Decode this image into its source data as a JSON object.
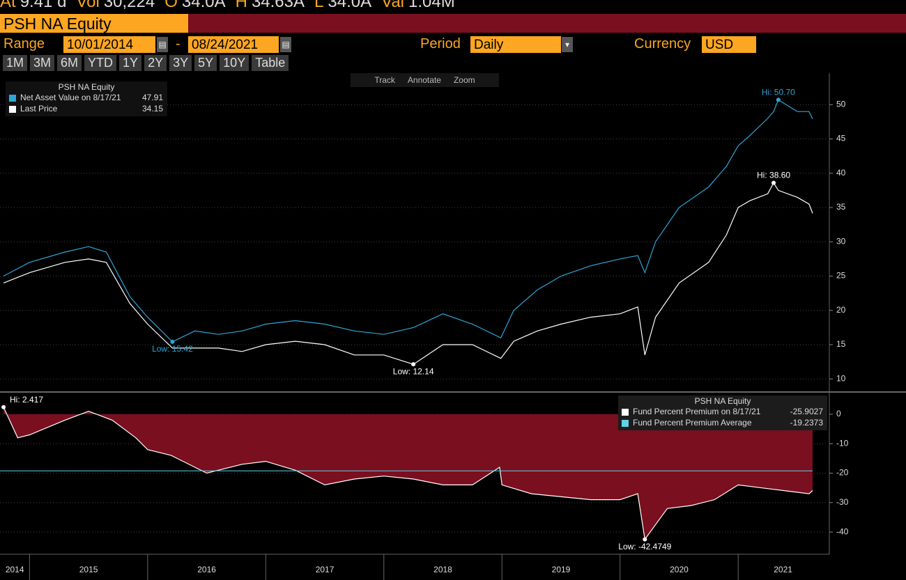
{
  "header": {
    "top_line": [
      "At",
      "9.41 d",
      "Vol",
      "30,224",
      "O",
      "34.0A",
      "H",
      "34.63A",
      "L",
      "34.0A",
      "Val",
      "1.04M"
    ],
    "ticker": "PSH NA Equity",
    "range_label": "Range",
    "start": "10/01/2014",
    "end": "08/24/2021",
    "period_label": "Period",
    "period": "Daily",
    "currency_label": "Currency",
    "currency": "USD",
    "buttons": [
      "1M",
      "3M",
      "6M",
      "YTD",
      "1Y",
      "2Y",
      "3Y",
      "5Y",
      "10Y",
      "Table"
    ],
    "tools": [
      "Track",
      "Annotate",
      "Zoom"
    ]
  },
  "x_axis": {
    "ticks": [
      2015,
      2016,
      2017,
      2018,
      2019,
      2020,
      2021
    ],
    "labels": [
      2014,
      2015,
      2016,
      2017,
      2018,
      2019,
      2020,
      2021
    ]
  },
  "chart_data": [
    {
      "type": "line",
      "legend_title": "PSH NA Equity",
      "x": [
        2014.78,
        2015.0,
        2015.3,
        2015.5,
        2015.65,
        2015.85,
        2016.0,
        2016.21,
        2016.4,
        2016.6,
        2016.8,
        2017.0,
        2017.25,
        2017.5,
        2017.75,
        2018.0,
        2018.25,
        2018.5,
        2018.75,
        2018.99,
        2019.1,
        2019.3,
        2019.5,
        2019.75,
        2020.0,
        2020.15,
        2020.21,
        2020.3,
        2020.5,
        2020.75,
        2020.9,
        2021.0,
        2021.1,
        2021.25,
        2021.3,
        2021.34,
        2021.5,
        2021.6,
        2021.63
      ],
      "series": [
        {
          "name": "Net Asset Value on 8/17/21",
          "color": "#2ea6d8",
          "legend_value": 47.91,
          "values": [
            25,
            27,
            28.5,
            29.3,
            28.5,
            22,
            19,
            15.42,
            17,
            16.5,
            17,
            18,
            18.5,
            18,
            17,
            16.5,
            17.5,
            19.5,
            18,
            16,
            20,
            23,
            25,
            26.5,
            27.5,
            28,
            25.5,
            30,
            35,
            38,
            41,
            44,
            45.5,
            48,
            49,
            50.7,
            49,
            49,
            47.91
          ]
        },
        {
          "name": "Last Price",
          "color": "#ffffff",
          "legend_value": 34.15,
          "values": [
            24,
            25.5,
            27,
            27.5,
            27,
            21,
            18,
            14.5,
            14.5,
            14.5,
            14,
            15,
            15.5,
            15,
            13.5,
            13.5,
            12.14,
            15,
            15,
            13,
            15.5,
            17,
            18,
            19,
            19.5,
            20.5,
            13.5,
            19,
            24,
            27,
            31,
            35,
            36,
            37,
            38.6,
            37.5,
            36.5,
            35.5,
            34.15
          ]
        }
      ],
      "annotations": [
        {
          "text": "Hi: 50.70",
          "x": 2021.34,
          "y": 50.7,
          "color": "#2ea6d8"
        },
        {
          "text": "Low: 15.42",
          "x": 2016.21,
          "y": 15.42,
          "color": "#2ea6d8"
        },
        {
          "text": "Hi: 38.60",
          "x": 2021.3,
          "y": 38.6,
          "color": "#ffffff"
        },
        {
          "text": "Low: 12.14",
          "x": 2018.25,
          "y": 12.14,
          "color": "#ffffff"
        }
      ],
      "xlim": [
        2014.75,
        2021.76
      ],
      "ylim": [
        8.4,
        54.6
      ],
      "yticks": [
        10,
        15,
        20,
        25,
        30,
        35,
        40,
        45,
        50
      ],
      "grid": true
    },
    {
      "type": "area",
      "legend_title": "PSH NA Equity",
      "x": [
        2014.78,
        2014.9,
        2015.0,
        2015.3,
        2015.5,
        2015.7,
        2015.9,
        2016.0,
        2016.2,
        2016.5,
        2016.8,
        2017.0,
        2017.25,
        2017.5,
        2017.75,
        2018.0,
        2018.25,
        2018.5,
        2018.75,
        2018.98,
        2019.0,
        2019.25,
        2019.5,
        2019.75,
        2020.0,
        2020.15,
        2020.21,
        2020.4,
        2020.6,
        2020.8,
        2021.0,
        2021.2,
        2021.4,
        2021.6,
        2021.63
      ],
      "series": [
        {
          "name": "Fund Percent Premium on 8/17/21",
          "color": "#ffffff",
          "fill": "#7a0f1f",
          "legend_value": -25.9027,
          "values": [
            2.417,
            -8,
            -7,
            -2,
            1,
            -2,
            -8,
            -12,
            -14,
            -20,
            -17,
            -16,
            -19,
            -24,
            -22,
            -21,
            -22,
            -24,
            -24,
            -18,
            -24,
            -27,
            -28,
            -29,
            -29,
            -27,
            -42.4749,
            -32,
            -31,
            -29,
            -24,
            -25,
            -26,
            -27,
            -25.9027
          ]
        }
      ],
      "average": {
        "name": "Fund Percent Premium Average",
        "color": "#5fd3e6",
        "value": -19.2373
      },
      "annotations": [
        {
          "text": "Hi: 2.417",
          "x": 2014.78,
          "y": 2.417,
          "color": "#ffffff"
        },
        {
          "text": "Low: -42.4749",
          "x": 2020.21,
          "y": -42.4749,
          "color": "#ffffff"
        }
      ],
      "xlim": [
        2014.75,
        2021.76
      ],
      "ylim": [
        -47.3,
        6.6
      ],
      "yticks": [
        0,
        -10,
        -20,
        -30,
        -40
      ],
      "grid": true
    }
  ]
}
